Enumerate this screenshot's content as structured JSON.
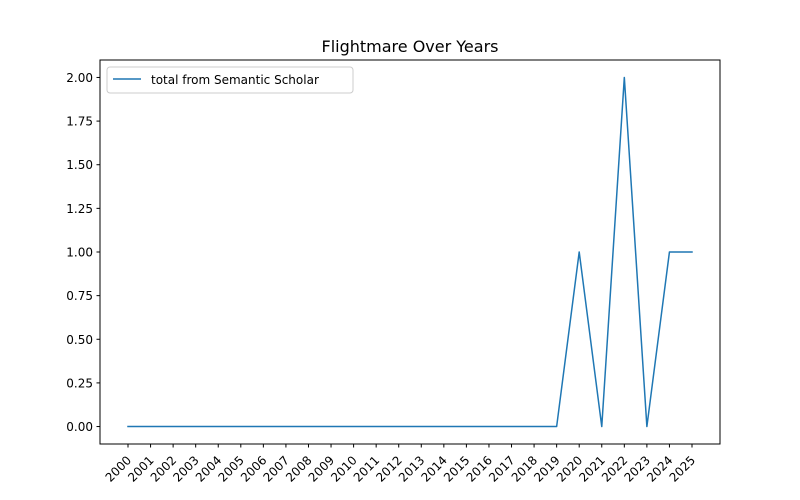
{
  "chart_data": {
    "type": "line",
    "title": "Flightmare Over Years",
    "xlabel": "",
    "ylabel": "",
    "x": [
      "2000",
      "2001",
      "2002",
      "2003",
      "2004",
      "2005",
      "2006",
      "2007",
      "2008",
      "2009",
      "2010",
      "2011",
      "2012",
      "2013",
      "2014",
      "2015",
      "2016",
      "2017",
      "2018",
      "2019",
      "2020",
      "2021",
      "2022",
      "2023",
      "2024",
      "2025"
    ],
    "series": [
      {
        "name": "total from Semantic Scholar",
        "color": "#1f77b4",
        "values": [
          0,
          0,
          0,
          0,
          0,
          0,
          0,
          0,
          0,
          0,
          0,
          0,
          0,
          0,
          0,
          0,
          0,
          0,
          0,
          0,
          1,
          0,
          2,
          0,
          1,
          1
        ]
      }
    ],
    "ylim": [
      -0.1,
      2.1
    ],
    "yticks": [
      "0.00",
      "0.25",
      "0.50",
      "0.75",
      "1.00",
      "1.25",
      "1.50",
      "1.75",
      "2.00"
    ],
    "legend": "top-left",
    "grid": false
  }
}
